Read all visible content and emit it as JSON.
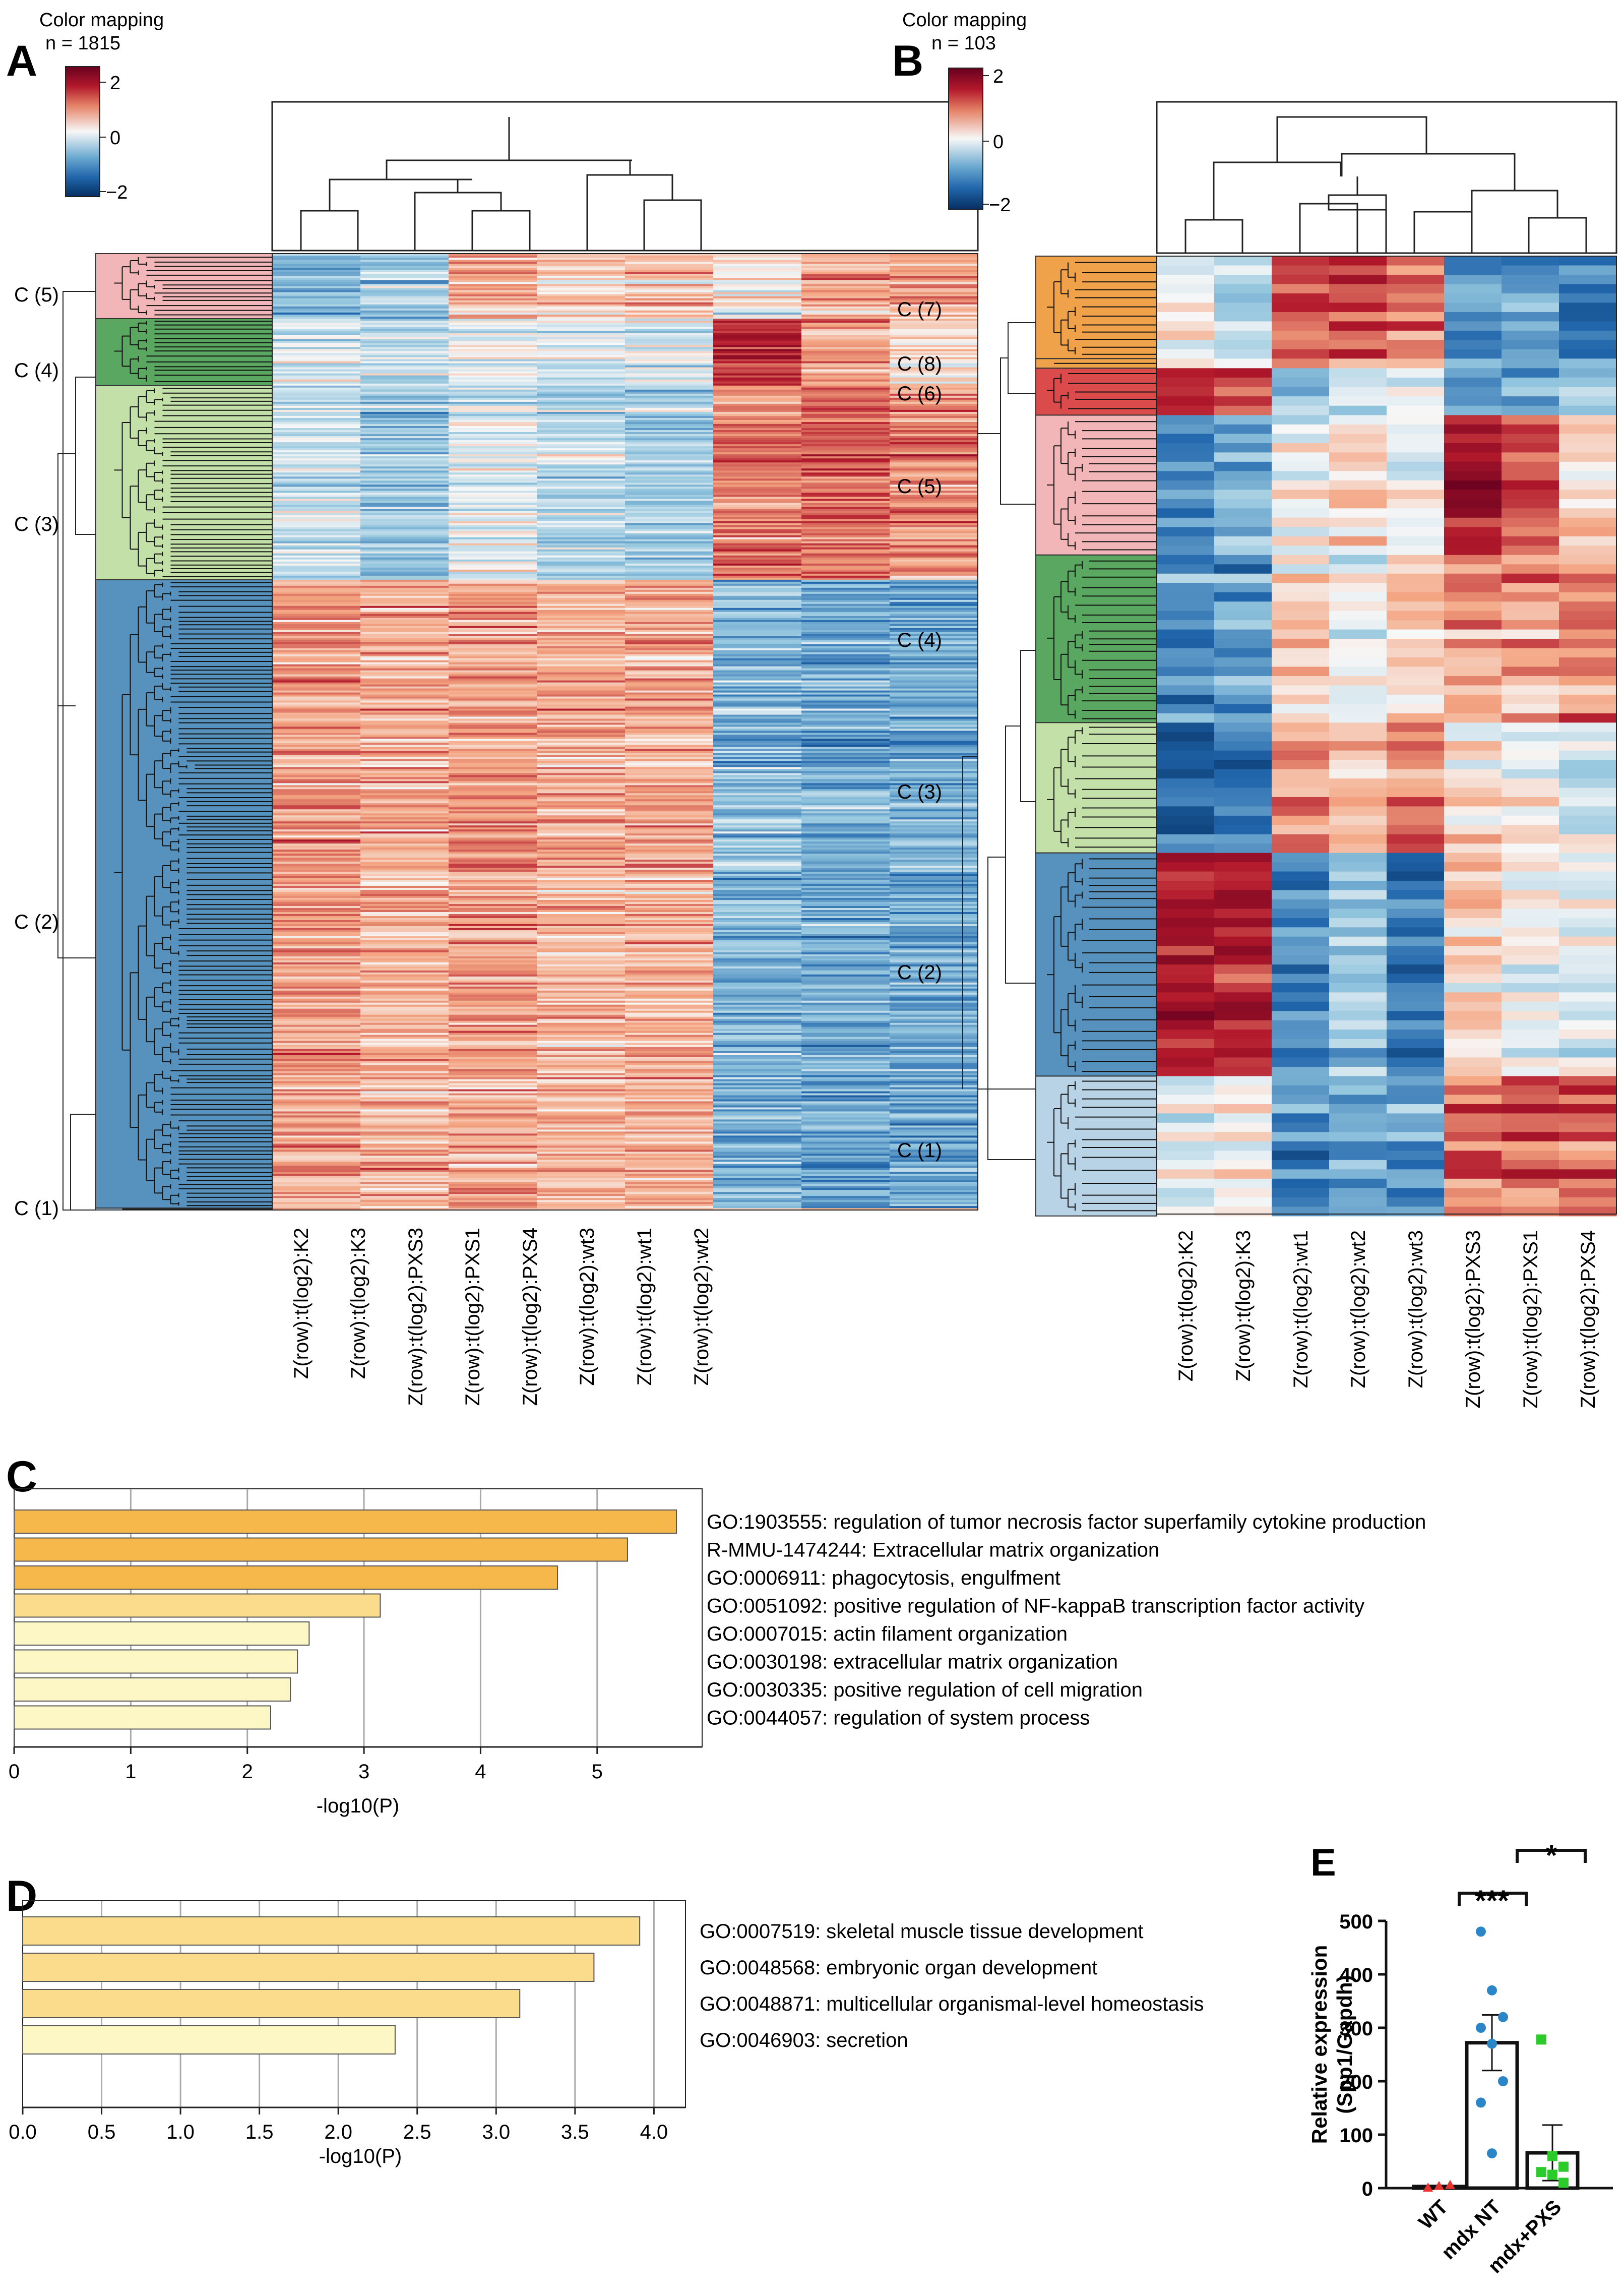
{
  "panels": {
    "A": {
      "label": "A",
      "legend_title": "Color mapping",
      "n_label": "n = 1815",
      "legend_ticks": [
        "2",
        "0",
        "−2"
      ],
      "cluster_labels": [
        "C (5)",
        "C (4)",
        "C (3)",
        "C (2)",
        "C (1)"
      ],
      "samples": [
        "Z(row):t(log2):K2",
        "Z(row):t(log2):K3",
        "Z(row):t(log2):PXS3",
        "Z(row):t(log2):PXS1",
        "Z(row):t(log2):PXS4",
        "Z(row):t(log2):wt3",
        "Z(row):t(log2):wt1",
        "Z(row):t(log2):wt2"
      ],
      "clusters": [
        {
          "name": "C (5)",
          "fraction": 0.068,
          "color": "#f3b6b8",
          "pattern": [
            -0.7,
            -0.5,
            0.5,
            0.3,
            0.4,
            0.1,
            0.5,
            0.6
          ]
        },
        {
          "name": "C (4)",
          "fraction": 0.07,
          "color": "#5aa761",
          "pattern": [
            -0.2,
            -0.3,
            0.0,
            -0.2,
            -0.1,
            1.2,
            0.6,
            0.2
          ]
        },
        {
          "name": "C (3)",
          "fraction": 0.203,
          "color": "#c4e0a9",
          "pattern": [
            -0.3,
            -0.6,
            -0.2,
            -0.4,
            -0.5,
            0.8,
            0.9,
            0.7
          ]
        },
        {
          "name": "C (2)",
          "fraction": 0.657,
          "color": "#5692bd",
          "pattern": [
            0.6,
            0.5,
            0.6,
            0.5,
            0.5,
            -0.7,
            -0.8,
            -0.8
          ]
        },
        {
          "name": "C (1)",
          "fraction": 0.002,
          "color": "#9fc5e3",
          "pattern": [
            0.3,
            0.2,
            0.2,
            0.2,
            0.2,
            -0.3,
            -0.3,
            -0.3
          ]
        }
      ]
    },
    "B": {
      "label": "B",
      "legend_title": "Color mapping",
      "n_label": "n = 103",
      "legend_ticks": [
        "2",
        "0",
        "−2"
      ],
      "cluster_labels": [
        "C (7)",
        "C (8)",
        "C (6)",
        "C (5)",
        "C (4)",
        "C (3)",
        "C (2)",
        "C (1)"
      ],
      "samples": [
        "Z(row):t(log2):K2",
        "Z(row):t(log2):K3",
        "Z(row):t(log2):wt1",
        "Z(row):t(log2):wt2",
        "Z(row):t(log2):wt3",
        "Z(row):t(log2):PXS3",
        "Z(row):t(log2):PXS1",
        "Z(row):t(log2):PXS4"
      ],
      "clusters": [
        {
          "name": "C (7)",
          "fraction": 0.107,
          "color": "#f0a24b",
          "pattern": [
            0.0,
            -0.3,
            1.0,
            1.1,
            0.8,
            -1.1,
            -0.9,
            -1.3
          ]
        },
        {
          "name": "C (8)",
          "fraction": 0.01,
          "color": "#f0a24b",
          "pattern": [
            0.0,
            -0.3,
            0.6,
            0.8,
            0.7,
            -0.8,
            -0.7,
            -0.9
          ]
        },
        {
          "name": "C (6)",
          "fraction": 0.049,
          "color": "#dc4b4b",
          "pattern": [
            1.4,
            1.1,
            -0.6,
            -0.3,
            -0.3,
            -0.7,
            -0.6,
            -0.5
          ]
        },
        {
          "name": "C (5)",
          "fraction": 0.146,
          "color": "#f3b6b8",
          "pattern": [
            -1.0,
            -0.7,
            0.0,
            0.2,
            0.1,
            1.5,
            1.1,
            0.3
          ]
        },
        {
          "name": "C (4)",
          "fraction": 0.175,
          "color": "#5aa761",
          "pattern": [
            -1.0,
            -0.9,
            0.3,
            0.0,
            0.4,
            0.6,
            0.5,
            0.8
          ]
        },
        {
          "name": "C (3)",
          "fraction": 0.136,
          "color": "#c4e0a9",
          "pattern": [
            -1.3,
            -1.1,
            0.8,
            0.5,
            0.9,
            0.2,
            0.1,
            -0.2
          ]
        },
        {
          "name": "C (2)",
          "fraction": 0.233,
          "color": "#5692bd",
          "pattern": [
            1.4,
            1.3,
            -0.9,
            -0.5,
            -1.2,
            0.3,
            0.0,
            0.0
          ]
        },
        {
          "name": "C (1)",
          "fraction": 0.146,
          "color": "#b8d3e5",
          "pattern": [
            -0.1,
            0.1,
            -1.0,
            -0.8,
            -0.9,
            1.0,
            0.9,
            1.1
          ]
        }
      ]
    },
    "C": {
      "label": "C",
      "xlabel": "-log10(P)",
      "xticks": [
        "0",
        "1",
        "2",
        "3",
        "4",
        "5"
      ]
    },
    "D": {
      "label": "D",
      "xlabel": "-log10(P)",
      "xticks": [
        "0.0",
        "0.5",
        "1.0",
        "1.5",
        "2.0",
        "2.5",
        "3.0",
        "3.5",
        "4.0"
      ]
    },
    "E": {
      "label": "E",
      "ylabel_line1": "Relative expression",
      "ylabel_line2": "(Spp1/Gapdh)",
      "yticks": [
        "0",
        "100",
        "200",
        "300",
        "400",
        "500"
      ],
      "sig1": "***",
      "sig2": "*"
    }
  },
  "chart_data": [
    {
      "type": "heatmap",
      "title": "Color mapping",
      "panel": "A",
      "n": 1815,
      "columns": [
        "Z(row):t(log2):K2",
        "Z(row):t(log2):K3",
        "Z(row):t(log2):PXS3",
        "Z(row):t(log2):PXS1",
        "Z(row):t(log2):PXS4",
        "Z(row):t(log2):wt3",
        "Z(row):t(log2):wt1",
        "Z(row):t(log2):wt2"
      ],
      "color_range": [
        -2,
        2
      ],
      "clusters": [
        "C (5)",
        "C (4)",
        "C (3)",
        "C (2)",
        "C (1)"
      ]
    },
    {
      "type": "heatmap",
      "title": "Color mapping",
      "panel": "B",
      "n": 103,
      "columns": [
        "Z(row):t(log2):K2",
        "Z(row):t(log2):K3",
        "Z(row):t(log2):wt1",
        "Z(row):t(log2):wt2",
        "Z(row):t(log2):wt3",
        "Z(row):t(log2):PXS3",
        "Z(row):t(log2):PXS1",
        "Z(row):t(log2):PXS4"
      ],
      "color_range": [
        -2,
        2
      ],
      "clusters": [
        "C (7)",
        "C (8)",
        "C (6)",
        "C (5)",
        "C (4)",
        "C (3)",
        "C (2)",
        "C (1)"
      ]
    },
    {
      "type": "bar",
      "panel": "C",
      "orientation": "horizontal",
      "xlabel": "-log10(P)",
      "xlim": [
        0,
        5.9
      ],
      "xticks": [
        0,
        1,
        2,
        3,
        4,
        5
      ],
      "categories": [
        "GO:1903555: regulation of tumor necrosis factor superfamily cytokine production",
        "R-MMU-1474244: Extracellular matrix organization",
        "GO:0006911: phagocytosis, engulfment",
        "GO:0051092: positive regulation of NF-kappaB transcription factor activity",
        "GO:0007015: actin filament organization",
        "GO:0030198: extracellular matrix organization",
        "GO:0030335: positive regulation of cell migration",
        "GO:0044057: regulation of system process"
      ],
      "values": [
        5.68,
        5.26,
        4.66,
        3.14,
        2.53,
        2.43,
        2.37,
        2.2
      ],
      "bar_colors": [
        "#f7b84b",
        "#f7b84b",
        "#f7b84b",
        "#fbdc8c",
        "#fdf7c5",
        "#fdf7c5",
        "#fdf7c5",
        "#fdf7c5"
      ]
    },
    {
      "type": "bar",
      "panel": "D",
      "orientation": "horizontal",
      "xlabel": "-log10(P)",
      "xlim": [
        0,
        4.2
      ],
      "xticks": [
        0.0,
        0.5,
        1.0,
        1.5,
        2.0,
        2.5,
        3.0,
        3.5,
        4.0
      ],
      "categories": [
        "GO:0007519: skeletal muscle tissue development",
        "GO:0048568: embryonic organ development",
        "GO:0048871: multicellular organismal-level homeostasis",
        "GO:0046903: secretion"
      ],
      "values": [
        3.91,
        3.62,
        3.15,
        2.36
      ],
      "bar_colors": [
        "#fbdc8c",
        "#fbdc8c",
        "#fbdc8c",
        "#fdf7c5"
      ]
    },
    {
      "type": "bar",
      "panel": "E",
      "ylabel": "Relative expression (Spp1/Gapdh)",
      "ylim": [
        0,
        500
      ],
      "yticks": [
        0,
        100,
        200,
        300,
        400,
        500
      ],
      "categories": [
        "WT",
        "mdx NT",
        "mdx+PXS"
      ],
      "values": [
        3,
        272,
        66
      ],
      "errors": [
        2,
        52,
        52
      ],
      "points": [
        [
          1,
          4,
          6
        ],
        [
          480,
          370,
          320,
          300,
          270,
          200,
          160,
          65
        ],
        [
          278,
          60,
          40,
          30,
          25,
          10
        ]
      ],
      "point_colors": [
        "#e8342f",
        "#2b86c8",
        "#2ccb2c"
      ],
      "significance": [
        {
          "pair": [
            "WT",
            "mdx NT"
          ],
          "label": "***"
        },
        {
          "pair": [
            "mdx NT",
            "mdx+PXS"
          ],
          "label": "*"
        }
      ]
    }
  ]
}
